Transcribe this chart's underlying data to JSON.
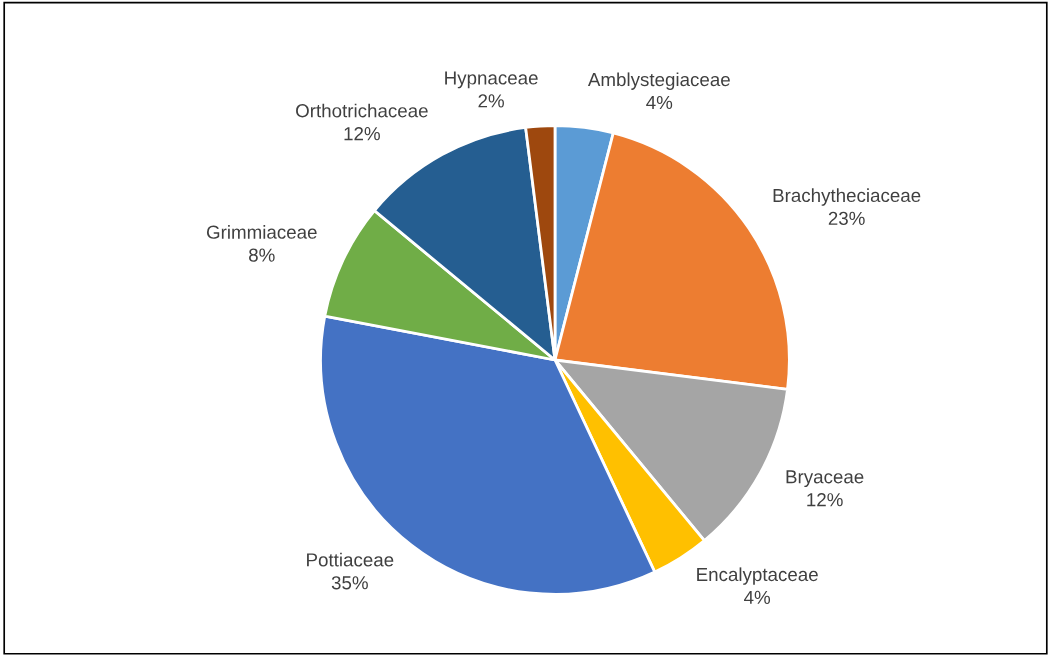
{
  "chart_data": {
    "type": "pie",
    "categories": [
      "Amblystegiaceae",
      "Brachytheciaceae",
      "Bryaceae",
      "Encalyptaceae",
      "Pottiaceae",
      "Grimmiaceae",
      "Orthotrichaceae",
      "Hypnaceae"
    ],
    "values": [
      4,
      23,
      12,
      4,
      35,
      8,
      12,
      2
    ],
    "value_labels": [
      "4%",
      "23%",
      "12%",
      "4%",
      "35%",
      "8%",
      "12%",
      "2%"
    ],
    "colors": [
      "#5b9bd5",
      "#ed7d31",
      "#a5a5a5",
      "#ffc000",
      "#4472c4",
      "#70ad47",
      "#255e91",
      "#9e480e"
    ],
    "legend": false
  }
}
